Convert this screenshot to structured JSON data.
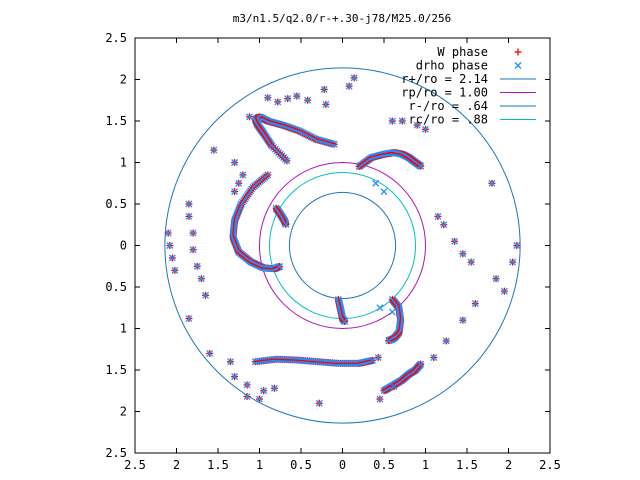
{
  "chart_data": {
    "type": "scatter",
    "title": "m3/n1.5/q2.0/r-+.30-j78/M25.0/256",
    "xlim": [
      -2.5,
      2.5
    ],
    "ylim": [
      -2.5,
      2.5
    ],
    "x_tick_labels": [
      "2.5",
      "2",
      "1.5",
      "1",
      "0.5",
      "0",
      "0.5",
      "1",
      "1.5",
      "2",
      "2.5"
    ],
    "y_tick_labels": [
      "2.5",
      "2",
      "1.5",
      "1",
      "0.5",
      "0",
      "0.5",
      "1",
      "1.5",
      "2",
      "2.5"
    ],
    "grid": false,
    "legend_position": "top-right",
    "series": [
      {
        "name": "W phase",
        "marker": "plus",
        "color": "#ff0000",
        "points": [
          [
            0.14,
            2.02
          ],
          [
            -0.22,
            1.88
          ],
          [
            -0.55,
            1.8
          ],
          [
            -0.66,
            1.77
          ],
          [
            -0.78,
            1.73
          ],
          [
            -0.9,
            1.78
          ],
          [
            -1.12,
            1.55
          ],
          [
            -0.2,
            1.7
          ],
          [
            -0.42,
            1.75
          ],
          [
            0.08,
            1.92
          ],
          [
            0.6,
            1.5
          ],
          [
            0.72,
            1.5
          ],
          [
            0.9,
            1.45
          ],
          [
            1.0,
            1.4
          ],
          [
            -1.55,
            1.15
          ],
          [
            -1.3,
            1.0
          ],
          [
            -1.2,
            0.85
          ],
          [
            -1.25,
            0.75
          ],
          [
            -1.3,
            0.65
          ],
          [
            -1.85,
            0.5
          ],
          [
            -1.85,
            0.35
          ],
          [
            -1.8,
            0.15
          ],
          [
            -1.8,
            -0.05
          ],
          [
            -1.75,
            -0.25
          ],
          [
            -1.7,
            -0.4
          ],
          [
            -2.1,
            0.15
          ],
          [
            -2.08,
            0.0
          ],
          [
            -2.05,
            -0.15
          ],
          [
            -2.02,
            -0.3
          ],
          [
            -1.65,
            -0.6
          ],
          [
            -1.85,
            -0.88
          ],
          [
            -1.6,
            -1.3
          ],
          [
            -1.35,
            -1.4
          ],
          [
            -1.3,
            -1.58
          ],
          [
            -1.15,
            -1.68
          ],
          [
            -0.95,
            -1.75
          ],
          [
            -0.82,
            -1.72
          ],
          [
            -0.28,
            -1.9
          ],
          [
            -1.15,
            -1.82
          ],
          [
            -1.0,
            -1.85
          ],
          [
            0.43,
            -1.35
          ],
          [
            0.45,
            -1.85
          ],
          [
            0.62,
            -1.7
          ],
          [
            1.1,
            -1.35
          ],
          [
            1.25,
            -1.15
          ],
          [
            1.45,
            -0.9
          ],
          [
            1.6,
            -0.7
          ],
          [
            1.85,
            -0.4
          ],
          [
            1.95,
            -0.55
          ],
          [
            2.05,
            -0.2
          ],
          [
            2.1,
            0.0
          ],
          [
            1.8,
            0.75
          ],
          [
            1.15,
            0.35
          ],
          [
            1.22,
            0.25
          ],
          [
            1.35,
            0.05
          ],
          [
            1.45,
            -0.1
          ],
          [
            1.55,
            -0.2
          ]
        ]
      },
      {
        "name": "drho phase",
        "marker": "cross",
        "color": "#1e90ff",
        "points": [
          [
            0.14,
            2.02
          ],
          [
            -0.22,
            1.88
          ],
          [
            -0.55,
            1.8
          ],
          [
            -0.66,
            1.77
          ],
          [
            -0.78,
            1.73
          ],
          [
            -0.9,
            1.78
          ],
          [
            -1.12,
            1.55
          ],
          [
            -0.2,
            1.7
          ],
          [
            -0.42,
            1.75
          ],
          [
            0.08,
            1.92
          ],
          [
            0.6,
            1.5
          ],
          [
            0.72,
            1.5
          ],
          [
            0.9,
            1.45
          ],
          [
            1.0,
            1.4
          ],
          [
            -1.55,
            1.15
          ],
          [
            -1.3,
            1.0
          ],
          [
            -1.2,
            0.85
          ],
          [
            -1.25,
            0.75
          ],
          [
            -1.3,
            0.65
          ],
          [
            -1.85,
            0.5
          ],
          [
            -1.85,
            0.35
          ],
          [
            -1.8,
            0.15
          ],
          [
            -1.8,
            -0.05
          ],
          [
            -1.75,
            -0.25
          ],
          [
            -1.7,
            -0.4
          ],
          [
            -2.1,
            0.15
          ],
          [
            -2.08,
            0.0
          ],
          [
            -2.05,
            -0.15
          ],
          [
            -2.02,
            -0.3
          ],
          [
            -1.65,
            -0.6
          ],
          [
            -1.85,
            -0.88
          ],
          [
            -1.6,
            -1.3
          ],
          [
            -1.35,
            -1.4
          ],
          [
            -1.3,
            -1.58
          ],
          [
            -1.15,
            -1.68
          ],
          [
            -0.95,
            -1.75
          ],
          [
            -0.82,
            -1.72
          ],
          [
            -0.28,
            -1.9
          ],
          [
            -1.15,
            -1.82
          ],
          [
            -1.0,
            -1.85
          ],
          [
            0.43,
            -1.35
          ],
          [
            0.45,
            -1.85
          ],
          [
            0.62,
            -1.7
          ],
          [
            1.1,
            -1.35
          ],
          [
            1.25,
            -1.15
          ],
          [
            1.45,
            -0.9
          ],
          [
            1.6,
            -0.7
          ],
          [
            1.85,
            -0.4
          ],
          [
            1.95,
            -0.55
          ],
          [
            2.05,
            -0.2
          ],
          [
            2.1,
            0.0
          ],
          [
            1.8,
            0.75
          ],
          [
            1.15,
            0.35
          ],
          [
            1.22,
            0.25
          ],
          [
            1.35,
            0.05
          ],
          [
            1.45,
            -0.1
          ],
          [
            1.55,
            -0.2
          ],
          [
            0.4,
            0.75
          ],
          [
            0.5,
            0.65
          ],
          [
            0.45,
            -0.75
          ],
          [
            0.6,
            -0.8
          ]
        ]
      }
    ],
    "arms": [
      {
        "name": "W phase",
        "x": [
          -0.1,
          -0.32,
          -0.52,
          -0.72,
          -0.9,
          -1.0,
          -1.05,
          -1.02,
          -0.95,
          -0.85,
          -0.65
        ],
        "y": [
          1.22,
          1.28,
          1.38,
          1.45,
          1.5,
          1.55,
          1.52,
          1.45,
          1.35,
          1.2,
          1.0
        ]
      },
      {
        "name": "W phase",
        "x": [
          -0.9,
          -1.08,
          -1.22,
          -1.3,
          -1.32,
          -1.25,
          -1.1,
          -0.95,
          -0.82,
          -0.75
        ],
        "y": [
          0.85,
          0.7,
          0.5,
          0.3,
          0.1,
          -0.08,
          -0.2,
          -0.27,
          -0.28,
          -0.25
        ]
      },
      {
        "name": "W phase",
        "x": [
          0.2,
          0.35,
          0.5,
          0.62,
          0.72,
          0.8,
          0.88,
          0.95
        ],
        "y": [
          0.95,
          1.06,
          1.1,
          1.12,
          1.1,
          1.06,
          1.0,
          0.95
        ]
      },
      {
        "name": "W phase",
        "x": [
          0.6,
          0.68,
          0.7,
          0.68,
          0.62,
          0.55
        ],
        "y": [
          -0.65,
          -0.75,
          -0.9,
          -1.05,
          -1.12,
          -1.15
        ]
      },
      {
        "name": "W phase",
        "x": [
          -1.05,
          -0.8,
          -0.55,
          -0.3,
          -0.05,
          0.2,
          0.38
        ],
        "y": [
          -1.4,
          -1.37,
          -1.38,
          -1.4,
          -1.42,
          -1.42,
          -1.38
        ]
      },
      {
        "name": "W phase",
        "x": [
          0.5,
          0.62,
          0.72,
          0.8,
          0.88,
          0.95
        ],
        "y": [
          -1.75,
          -1.68,
          -1.62,
          -1.55,
          -1.5,
          -1.42
        ]
      },
      {
        "name": "W phase",
        "x": [
          -0.8,
          -0.75,
          -0.7,
          -0.68
        ],
        "y": [
          0.45,
          0.38,
          0.3,
          0.25
        ]
      },
      {
        "name": "W phase",
        "x": [
          -0.05,
          -0.02,
          0.0,
          0.03
        ],
        "y": [
          -0.65,
          -0.78,
          -0.88,
          -0.92
        ]
      }
    ]
  },
  "legend": {
    "entries": [
      {
        "label": "W phase",
        "marker": "plus",
        "color": "#ff0000"
      },
      {
        "label": "drho phase",
        "marker": "cross",
        "color": "#1e90ff"
      },
      {
        "label": "r+/ro = 2.14",
        "marker": "line",
        "color": "#1f77b4"
      },
      {
        "label": "rp/ro = 1.00",
        "marker": "line",
        "color": "#b010c0"
      },
      {
        "label": "r-/ro = .64",
        "marker": "line",
        "color": "#1f77b4"
      },
      {
        "label": "rc/ro = .88",
        "marker": "line",
        "color": "#00c0c0"
      }
    ]
  },
  "circles": [
    {
      "label": "r+/ro = 2.14",
      "r": 2.14,
      "color": "#1f77b4"
    },
    {
      "label": "rp/ro = 1.00",
      "r": 1.0,
      "color": "#b010c0"
    },
    {
      "label": "r-/ro = .64",
      "r": 0.64,
      "color": "#1f77b4"
    },
    {
      "label": "rc/ro = .88",
      "r": 0.88,
      "color": "#00c0c0"
    }
  ]
}
